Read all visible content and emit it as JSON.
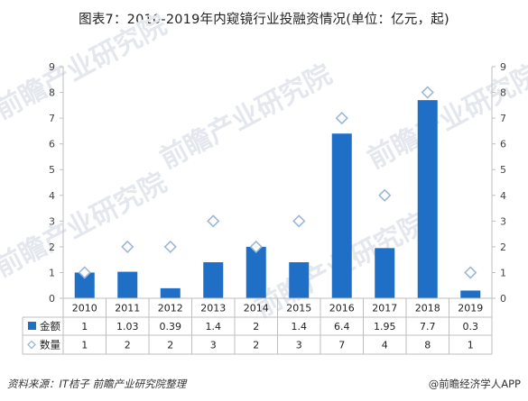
{
  "chart_data": {
    "type": "bar",
    "title": "图表7：2010-2019年内窥镜行业投融资情况(单位：亿元，起)",
    "categories": [
      "2010",
      "2011",
      "2012",
      "2013",
      "2014",
      "2015",
      "2016",
      "2017",
      "2018",
      "2019"
    ],
    "series": [
      {
        "name": "金额",
        "kind": "bar",
        "axis": "left",
        "color": "#1f6fc6",
        "values": [
          1,
          1.03,
          0.39,
          1.4,
          2,
          1.4,
          6.4,
          1.95,
          7.7,
          0.3
        ],
        "labels": [
          "1",
          "1.03",
          "0.39",
          "1.4",
          "2",
          "1.4",
          "6.4",
          "1.95",
          "7.7",
          "0.3"
        ]
      },
      {
        "name": "数量",
        "kind": "marker",
        "marker": "diamond",
        "axis": "right",
        "color": "#9db8d6",
        "values": [
          1,
          2,
          2,
          3,
          2,
          3,
          7,
          4,
          8,
          1
        ],
        "labels": [
          "1",
          "2",
          "2",
          "3",
          "2",
          "3",
          "7",
          "4",
          "8",
          "1"
        ]
      }
    ],
    "ylim": [
      0,
      9
    ],
    "y2lim": [
      0,
      9
    ],
    "yticks": [
      "0",
      "1",
      "2",
      "3",
      "4",
      "5",
      "6",
      "7",
      "8",
      "9"
    ],
    "data_table": true,
    "grid": false
  },
  "source_text": "资料来源：IT桔子 前瞻产业研究院整理",
  "brand_text": "@前瞻经济学人APP",
  "watermark_text": "前瞻产业研究院"
}
